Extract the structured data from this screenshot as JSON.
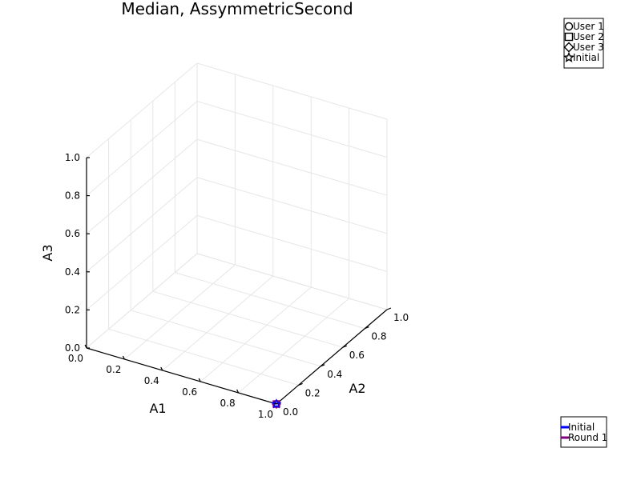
{
  "chart_data": {
    "type": "scatter3d",
    "title": "Median, AssymmetricSecond",
    "xlabel": "A1",
    "ylabel": "A2",
    "zlabel": "A3",
    "xlim": [
      0,
      1
    ],
    "ylim": [
      0,
      1
    ],
    "zlim": [
      0,
      1
    ],
    "grid": true,
    "x_ticks": [
      "0.0",
      "0.2",
      "0.4",
      "0.6",
      "0.8",
      "1.0"
    ],
    "y_ticks": [
      "0.0",
      "0.2",
      "0.4",
      "0.6",
      "0.8",
      "1.0"
    ],
    "z_ticks": [
      "0.0",
      "0.2",
      "0.4",
      "0.6",
      "0.8",
      "1.0"
    ],
    "marker_legend": {
      "placement": "top-right",
      "entries": [
        {
          "label": "User 1",
          "marker": "circle"
        },
        {
          "label": "User 2",
          "marker": "square"
        },
        {
          "label": "User 3",
          "marker": "diamond"
        },
        {
          "label": "Initial",
          "marker": "star"
        }
      ]
    },
    "line_legend": {
      "placement": "bottom-right",
      "entries": [
        {
          "label": "Initial",
          "color": "#0000ff"
        },
        {
          "label": "Round 1",
          "color": "#800080"
        }
      ]
    },
    "points": [
      {
        "marker": "circle",
        "x": 1.0,
        "y": 0.0,
        "z": 0.0,
        "color": "#800080"
      },
      {
        "marker": "square",
        "x": 1.0,
        "y": 0.0,
        "z": 0.0,
        "color": "#800080"
      },
      {
        "marker": "diamond",
        "x": 1.0,
        "y": 0.0,
        "z": 0.0,
        "color": "#800080"
      },
      {
        "marker": "star",
        "x": 1.0,
        "y": 0.0,
        "z": 0.0,
        "color": "#0000ff"
      }
    ]
  }
}
